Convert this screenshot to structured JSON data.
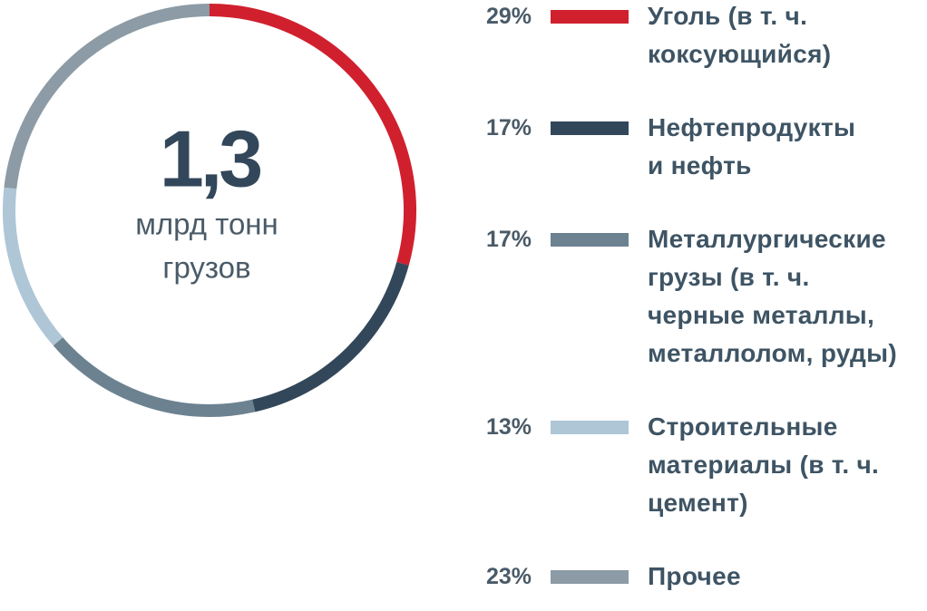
{
  "chart_data": {
    "type": "donut",
    "center_value": "1,3",
    "center_text": [
      "млрд тонн",
      "грузов"
    ],
    "series": [
      {
        "name": "Уголь (в т. ч.\nкоксующийся)",
        "color": "#d0202e",
        "value": 29,
        "value_label": "29%"
      },
      {
        "name": "Нефтепродукты\nи нефть",
        "color": "#33475a",
        "value": 17,
        "value_label": "17%"
      },
      {
        "name": "Металлургические\nгрузы (в т. ч.\nчерные металлы,\nметаллолом, руды)",
        "color": "#6c8291",
        "value": 17,
        "value_label": "17%"
      },
      {
        "name": "Строительные\nматериалы (в т. ч.\nцемент)",
        "color": "#aec6d6",
        "value": 13,
        "value_label": "13%"
      },
      {
        "name": "Прочее",
        "color": "#8c9ba5",
        "value": 23,
        "value_label": "23%"
      }
    ]
  }
}
